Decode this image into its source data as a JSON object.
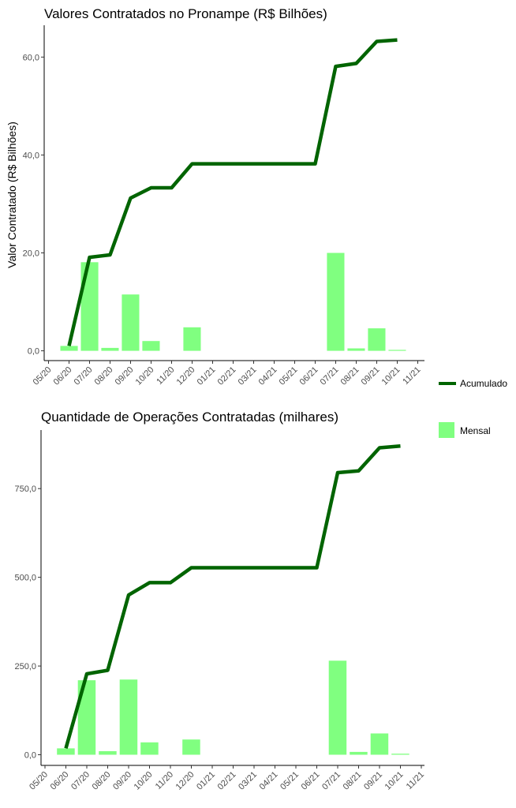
{
  "chart_data": [
    {
      "type": "bar",
      "title": "Valores Contratados no Pronampe (R$ Bilhões)",
      "ylabel": "Valor Contratado (R$ Bilhões)",
      "xlabel": "",
      "ylim": [
        -2,
        66.5
      ],
      "yticks": [
        0,
        20,
        40,
        60
      ],
      "ytick_labels": [
        "0,0",
        "20,0",
        "40,0",
        "60,0"
      ],
      "x_tick_labels": [
        "05/20",
        "06/20",
        "07/20",
        "08/20",
        "09/20",
        "10/20",
        "11/20",
        "12/20",
        "01/21",
        "02/21",
        "03/21",
        "04/21",
        "05/21",
        "06/21",
        "07/21",
        "08/21",
        "09/21",
        "10/21",
        "11/21"
      ],
      "grid": false,
      "series": [
        {
          "name": "Mensal",
          "kind": "bar",
          "color": "#80ff80",
          "values": [
            null,
            1.0,
            18.1,
            0.6,
            11.5,
            2.0,
            0.0,
            4.8,
            0,
            0,
            0,
            0,
            0,
            0,
            20.0,
            0.5,
            4.6,
            0.2,
            null
          ]
        },
        {
          "name": "Acumulado",
          "kind": "line",
          "color": "#006400",
          "values": [
            null,
            1.0,
            19.1,
            19.6,
            31.2,
            33.3,
            33.3,
            38.2,
            38.2,
            38.2,
            38.2,
            38.2,
            38.2,
            38.2,
            58.1,
            58.7,
            63.2,
            63.5,
            null
          ]
        }
      ]
    },
    {
      "type": "bar",
      "title": "Quantidade de Operações Contratadas (milhares)",
      "ylabel": "",
      "xlabel": "",
      "ylim": [
        -30,
        915
      ],
      "yticks": [
        0,
        250,
        500,
        750
      ],
      "ytick_labels": [
        "0,0",
        "250,0",
        "500,0",
        "750,0"
      ],
      "x_tick_labels": [
        "05/20",
        "06/20",
        "07/20",
        "08/20",
        "09/20",
        "10/20",
        "11/20",
        "12/20",
        "01/21",
        "02/21",
        "03/21",
        "04/21",
        "05/21",
        "06/21",
        "07/21",
        "08/21",
        "09/21",
        "10/21",
        "11/21"
      ],
      "grid": false,
      "series": [
        {
          "name": "Mensal",
          "kind": "bar",
          "color": "#80ff80",
          "values": [
            null,
            18,
            210,
            10,
            212,
            35,
            0,
            43,
            0,
            0,
            0,
            0,
            0,
            0,
            265,
            8,
            60,
            3,
            null
          ]
        },
        {
          "name": "Acumulado",
          "kind": "line",
          "color": "#006400",
          "values": [
            null,
            18,
            228,
            238,
            450,
            485,
            485,
            527,
            527,
            527,
            527,
            527,
            527,
            527,
            795,
            800,
            865,
            870,
            null
          ]
        }
      ]
    }
  ],
  "legend": {
    "placement": "right",
    "items": [
      {
        "label": "Acumulado",
        "color": "#006400",
        "kind": "line"
      },
      {
        "label": "Mensal",
        "color": "#80ff80",
        "kind": "bar"
      }
    ]
  }
}
